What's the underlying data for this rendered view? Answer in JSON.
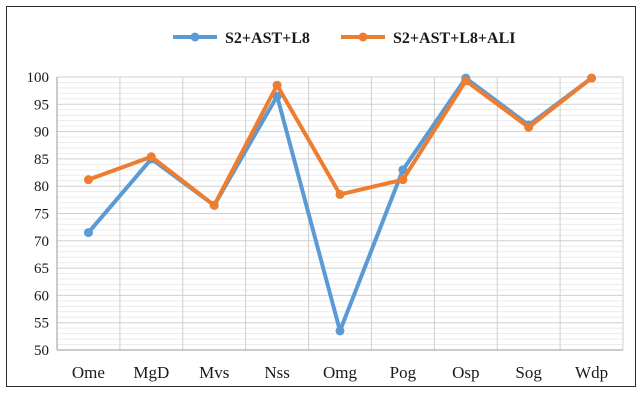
{
  "chart_data": {
    "type": "line",
    "title": "",
    "xlabel": "",
    "ylabel": "",
    "categories": [
      "Ome",
      "MgD",
      "Mvs",
      "Nss",
      "Omg",
      "Pog",
      "Osp",
      "Sog",
      "Wdp"
    ],
    "ylim": [
      50,
      100
    ],
    "yticks": [
      50,
      55,
      60,
      65,
      70,
      75,
      80,
      85,
      90,
      95,
      100
    ],
    "grid": true,
    "legend_position": "top",
    "series": [
      {
        "name": "S2+AST+L8",
        "color": "#5b9bd5",
        "values": [
          71.5,
          85.0,
          76.5,
          96.5,
          53.5,
          83.0,
          99.8,
          91.2,
          99.8
        ]
      },
      {
        "name": "S2+AST+L8+ALI",
        "color": "#ed7d31",
        "values": [
          81.2,
          85.4,
          76.5,
          98.5,
          78.5,
          81.2,
          99.3,
          90.8,
          99.8
        ]
      }
    ]
  }
}
